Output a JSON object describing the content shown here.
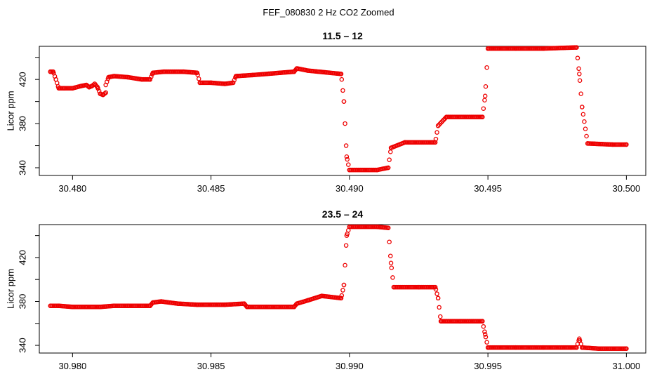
{
  "page_title": "FEF_080830  2 Hz CO2 Zoomed",
  "point_color": "#ee0000",
  "chart_data": [
    {
      "type": "scatter",
      "title": "11.5 – 12",
      "xlabel": "",
      "ylabel": "Licor ppm",
      "xlim": [
        30.4788,
        30.5007
      ],
      "ylim": [
        333,
        450
      ],
      "x_ticks": [
        30.48,
        30.485,
        30.49,
        30.495,
        30.5
      ],
      "x_tick_labels": [
        "30.480",
        "30.485",
        "30.490",
        "30.495",
        "30.500"
      ],
      "y_ticks": [
        340,
        360,
        380,
        400,
        420,
        440
      ],
      "y_tick_labels": [
        "340",
        "",
        "380",
        "",
        "420",
        ""
      ],
      "marker": "open-circle",
      "grid": false,
      "series_profile": [
        [
          30.4792,
          427
        ],
        [
          30.4793,
          427
        ],
        [
          30.4794,
          420
        ],
        [
          30.4795,
          412
        ],
        [
          30.4797,
          412
        ],
        [
          30.48,
          412
        ],
        [
          30.4803,
          414
        ],
        [
          30.4805,
          415
        ],
        [
          30.4806,
          413
        ],
        [
          30.4807,
          414
        ],
        [
          30.4808,
          416
        ],
        [
          30.4809,
          413
        ],
        [
          30.481,
          407
        ],
        [
          30.4811,
          406
        ],
        [
          30.4812,
          408
        ],
        [
          30.4812,
          415
        ],
        [
          30.4813,
          422
        ],
        [
          30.4815,
          423
        ],
        [
          30.482,
          422
        ],
        [
          30.4825,
          420
        ],
        [
          30.4828,
          420
        ],
        [
          30.4829,
          426
        ],
        [
          30.4833,
          427
        ],
        [
          30.484,
          427
        ],
        [
          30.4845,
          426
        ],
        [
          30.4846,
          417
        ],
        [
          30.485,
          417
        ],
        [
          30.4855,
          416
        ],
        [
          30.4858,
          417
        ],
        [
          30.4859,
          423
        ],
        [
          30.4865,
          424
        ],
        [
          30.4875,
          426
        ],
        [
          30.488,
          427
        ],
        [
          30.4881,
          430
        ],
        [
          30.4885,
          428
        ],
        [
          30.4897,
          425
        ],
        [
          30.4898,
          400
        ],
        [
          30.4899,
          350
        ],
        [
          30.49,
          338
        ],
        [
          30.491,
          338
        ],
        [
          30.4914,
          340
        ],
        [
          30.4915,
          358
        ],
        [
          30.492,
          363
        ],
        [
          30.4931,
          363
        ],
        [
          30.4932,
          378
        ],
        [
          30.4935,
          386
        ],
        [
          30.4948,
          386
        ],
        [
          30.4949,
          405
        ],
        [
          30.495,
          448
        ],
        [
          30.496,
          448
        ],
        [
          30.497,
          448
        ],
        [
          30.4982,
          449
        ],
        [
          30.4983,
          425
        ],
        [
          30.4984,
          395
        ],
        [
          30.4986,
          362
        ],
        [
          30.4995,
          361
        ],
        [
          30.5,
          361
        ]
      ]
    },
    {
      "type": "scatter",
      "title": "23.5 – 24",
      "xlabel": "",
      "ylabel": "Licor ppm",
      "xlim": [
        30.9788,
        31.0007
      ],
      "ylim": [
        333,
        450
      ],
      "x_ticks": [
        30.98,
        30.985,
        30.99,
        30.995,
        31.0
      ],
      "x_tick_labels": [
        "30.980",
        "30.985",
        "30.990",
        "30.995",
        "31.000"
      ],
      "y_ticks": [
        340,
        360,
        380,
        400,
        420,
        440
      ],
      "y_tick_labels": [
        "340",
        "",
        "380",
        "",
        "420",
        ""
      ],
      "marker": "open-circle",
      "grid": false,
      "series_profile": [
        [
          30.9792,
          376
        ],
        [
          30.9795,
          376
        ],
        [
          30.98,
          375
        ],
        [
          30.9805,
          375
        ],
        [
          30.981,
          375
        ],
        [
          30.9815,
          376
        ],
        [
          30.982,
          376
        ],
        [
          30.9828,
          376
        ],
        [
          30.9829,
          379
        ],
        [
          30.9832,
          380
        ],
        [
          30.9838,
          378
        ],
        [
          30.9845,
          377
        ],
        [
          30.9855,
          377
        ],
        [
          30.9862,
          378
        ],
        [
          30.9863,
          375
        ],
        [
          30.987,
          375
        ],
        [
          30.988,
          375
        ],
        [
          30.9881,
          378
        ],
        [
          30.9885,
          381
        ],
        [
          30.989,
          385
        ],
        [
          30.9897,
          383
        ],
        [
          30.9898,
          395
        ],
        [
          30.9899,
          440
        ],
        [
          30.99,
          448
        ],
        [
          30.991,
          448
        ],
        [
          30.9914,
          447
        ],
        [
          30.9915,
          415
        ],
        [
          30.9916,
          393
        ],
        [
          30.9925,
          393
        ],
        [
          30.9931,
          393
        ],
        [
          30.9932,
          383
        ],
        [
          30.9933,
          362
        ],
        [
          30.994,
          362
        ],
        [
          30.9948,
          362
        ],
        [
          30.9949,
          350
        ],
        [
          30.995,
          338
        ],
        [
          30.996,
          338
        ],
        [
          30.997,
          338
        ],
        [
          30.998,
          338
        ],
        [
          30.9982,
          338
        ],
        [
          30.9983,
          346
        ],
        [
          30.9984,
          338
        ],
        [
          30.999,
          337
        ],
        [
          31.0,
          337
        ]
      ]
    }
  ]
}
